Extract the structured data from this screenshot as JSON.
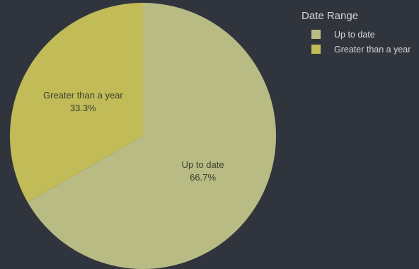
{
  "chart_data": {
    "type": "pie",
    "legend_title": "Date Range",
    "legend_placement": "top-right",
    "slices": [
      {
        "label": "Up to date",
        "percent_label": "66.7%",
        "value": 66.7,
        "color": "#b9bb84"
      },
      {
        "label": "Greater than a year",
        "percent_label": "33.3%",
        "value": 33.3,
        "color": "#c1bb58"
      }
    ]
  }
}
